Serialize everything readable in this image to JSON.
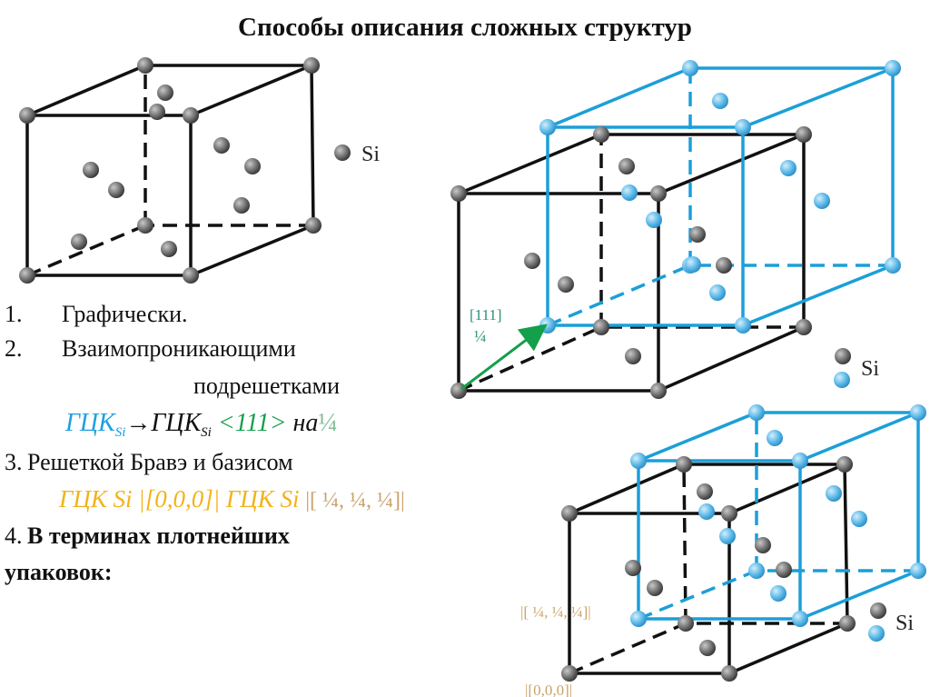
{
  "title": "Способы описания сложных структур",
  "list": {
    "item1": {
      "num": "1.",
      "text": "Графически."
    },
    "item2": {
      "num": "2.",
      "text": "Взаимопроникающими",
      "text2": "подрешетками"
    },
    "formula1": {
      "a": "ГЦК",
      "a_sub": "Si",
      "arrow": "→",
      "b": "ГЦК",
      "b_sub": "Si",
      "dir": "<111>",
      "on": "на",
      "frac": "¼"
    },
    "item3": {
      "num": "3.",
      "text": "Решеткой Бравэ и базисом"
    },
    "formula2": {
      "a": "ГЦК Si",
      "pos1": "|[0,0,0]|",
      "b": "ГЦК Si",
      "pos2": "|[ ¼, ¼, ¼]|"
    },
    "item4": {
      "num": "4.",
      "text": "В терминах плотнейших",
      "text2": "упаковок:"
    }
  },
  "figure1": {
    "legend": "Si"
  },
  "figure2": {
    "legend": "Si",
    "dir_label": "[111]",
    "frac_label": "¼"
  },
  "figure3": {
    "legend": "Si",
    "label_quarter": "|[ ¼, ¼, ¼]|",
    "label_origin": "|[0,0,0]|"
  },
  "colors": {
    "sublattice_a": "#1b9fd8",
    "sublattice_b": "#111111",
    "direction": "#12a04a",
    "basis": "#f2b31a",
    "atom_gray": "#6a6a6a",
    "atom_blue": "#5bb8e8"
  }
}
